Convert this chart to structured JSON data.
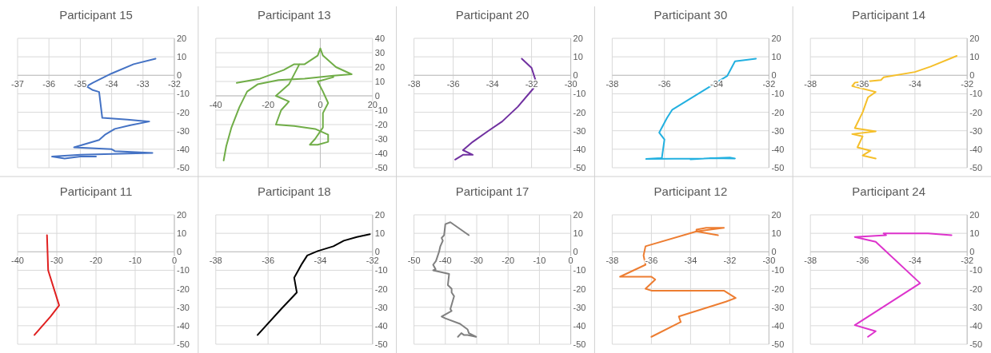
{
  "chart_data": [
    {
      "type": "line",
      "title": "Participant 15",
      "xlim": [
        -37,
        -32
      ],
      "xticks": [
        -37,
        -36,
        -35,
        -34,
        -33,
        -32
      ],
      "ylim": [
        -50,
        20
      ],
      "yticks": [
        -50,
        -40,
        -30,
        -20,
        -10,
        0,
        10,
        20
      ],
      "grid": true,
      "marker": "none",
      "line_style": "solid",
      "series": [
        {
          "color": "#4472c4",
          "x": [
            -32.6,
            -33.3,
            -34,
            -34.6,
            -34.8,
            -34.6,
            -34.4,
            -34.3,
            -33.5,
            -32.8,
            -33.4,
            -33.9,
            -34.2,
            -34.4,
            -35.2,
            -34,
            -33.9,
            -32.7,
            -35,
            -35.9,
            -35.5,
            -35,
            -34.5
          ],
          "values": [
            9,
            6,
            1,
            -4,
            -6,
            -8,
            -9,
            -23,
            -24,
            -25,
            -27,
            -29,
            -32,
            -35,
            -39,
            -40,
            -41,
            -42,
            -43,
            -44,
            -45,
            -44,
            -44
          ]
        }
      ]
    },
    {
      "type": "line",
      "title": "Participant 13",
      "xlim": [
        -40,
        20
      ],
      "xticks": [
        -40,
        -20,
        0,
        20
      ],
      "ylim": [
        -50,
        40
      ],
      "yticks": [
        -50,
        -40,
        -30,
        -20,
        -10,
        0,
        10,
        20,
        30,
        40
      ],
      "grid": true,
      "marker": "none",
      "line_style": "solid",
      "series": [
        {
          "color": "#70ad47",
          "x": [
            -37,
            -36,
            -34,
            -31,
            -28,
            -24,
            -16,
            -6,
            5,
            12,
            6,
            1,
            0,
            -1,
            -6,
            -10,
            -14,
            -23,
            -32,
            null,
            -8,
            -12,
            -17,
            -12,
            -15,
            -17,
            -10,
            -2,
            3,
            3,
            -1,
            -4,
            -2,
            1,
            1,
            3,
            1,
            -1,
            5
          ],
          "values": [
            -45,
            -35,
            -22,
            -8,
            3,
            8,
            11,
            12,
            14,
            15,
            20,
            28,
            33,
            28,
            22,
            22,
            18,
            12,
            9,
            null,
            22,
            8,
            0,
            -4,
            -10,
            -20,
            -21,
            -23,
            -27,
            -32,
            -34,
            -34,
            -30,
            -22,
            -12,
            -5,
            3,
            10,
            13
          ]
        }
      ]
    },
    {
      "type": "line",
      "title": "Participant 20",
      "xlim": [
        -38,
        -30
      ],
      "xticks": [
        -38,
        -36,
        -34,
        -32,
        -30
      ],
      "ylim": [
        -50,
        20
      ],
      "yticks": [
        -50,
        -40,
        -30,
        -20,
        -10,
        0,
        10,
        20
      ],
      "grid": true,
      "marker": "none",
      "line_style": "solid",
      "series": [
        {
          "color": "#7030a0",
          "x": [
            -32.5,
            -32,
            -31.8,
            -31.9,
            -32.7,
            -33.5,
            -34.2,
            -35,
            -35.5,
            -35,
            -35.5,
            -35.9
          ],
          "values": [
            9,
            4,
            -2.6,
            -7,
            -17,
            -25,
            -30,
            -36,
            -40.5,
            -43,
            -43,
            -45.6
          ]
        }
      ]
    },
    {
      "type": "line",
      "title": "Participant 30",
      "xlim": [
        -38,
        -32
      ],
      "xticks": [
        -38,
        -36,
        -34,
        -32
      ],
      "ylim": [
        -50,
        20
      ],
      "yticks": [
        -50,
        -40,
        -30,
        -20,
        -10,
        0,
        10,
        20
      ],
      "grid": true,
      "marker": "none",
      "line_style": "solid",
      "series": [
        {
          "color": "#22b0e0",
          "x": [
            -32.5,
            -33.3,
            -33.6,
            -35.7,
            -35.9,
            -36.2,
            -36,
            -36.1,
            -36.7,
            -34.5,
            -33.5,
            -33.3,
            -34.2,
            -35
          ],
          "values": [
            9,
            7.6,
            -0.4,
            -18.6,
            -23,
            -31,
            -34.7,
            -44.8,
            -45.3,
            -45,
            -44.5,
            -45,
            -44.8,
            -45.5
          ]
        }
      ]
    },
    {
      "type": "line",
      "title": "Participant 14",
      "xlim": [
        -38,
        -32
      ],
      "xticks": [
        -38,
        -36,
        -34,
        -32
      ],
      "ylim": [
        -50,
        20
      ],
      "yticks": [
        -50,
        -40,
        -30,
        -20,
        -10,
        0,
        10,
        20
      ],
      "grid": true,
      "marker": "none",
      "line_style": "solid",
      "series": [
        {
          "color": "#f5bf2a",
          "x": [
            -32.4,
            -33.4,
            -34,
            -35.2,
            -35.3,
            -36.3,
            -36.4,
            -35.5,
            -35.8,
            -36,
            -36.3,
            -35.5,
            -36.4,
            -36,
            -36.2,
            -35.7,
            -36,
            -35.5
          ],
          "values": [
            10.5,
            4.7,
            1.8,
            -1.1,
            -2.6,
            -4,
            -5.8,
            -9,
            -12,
            -20,
            -28.6,
            -30.3,
            -31.8,
            -33,
            -39,
            -40.8,
            -43.4,
            -45
          ]
        }
      ]
    },
    {
      "type": "line",
      "title": "Participant 11",
      "xlim": [
        -40,
        0
      ],
      "xticks": [
        -40,
        -30,
        -20,
        -10,
        0
      ],
      "ylim": [
        -50,
        20
      ],
      "yticks": [
        -50,
        -40,
        -30,
        -20,
        -10,
        0,
        10,
        20
      ],
      "grid": true,
      "marker": "none",
      "line_style": "solid",
      "series": [
        {
          "color": "#e02020",
          "x": [
            -32.5,
            -32.2,
            -29.4,
            -31.6,
            -35.7
          ],
          "values": [
            9,
            -10,
            -29,
            -35,
            -45
          ]
        }
      ]
    },
    {
      "type": "line",
      "title": "Participant 18",
      "xlim": [
        -38,
        -32
      ],
      "xticks": [
        -38,
        -36,
        -34,
        -32
      ],
      "ylim": [
        -50,
        20
      ],
      "yticks": [
        -50,
        -40,
        -30,
        -20,
        -10,
        0,
        10,
        20
      ],
      "grid": true,
      "marker": "none",
      "line_style": "solid",
      "series": [
        {
          "color": "#000000",
          "x": [
            -32.1,
            -32.6,
            -33.1,
            -33.5,
            -34.1,
            -34.5,
            -34.7,
            -35,
            -34.9,
            -35.5,
            -36.4
          ],
          "values": [
            9.5,
            8,
            6,
            3,
            0.4,
            -2,
            -6.4,
            -14,
            -22,
            -31,
            -45
          ]
        }
      ]
    },
    {
      "type": "line",
      "title": "Participant 17",
      "xlim": [
        -50,
        0
      ],
      "xticks": [
        -50,
        -40,
        -30,
        -20,
        -10,
        0
      ],
      "ylim": [
        -50,
        20
      ],
      "yticks": [
        -50,
        -40,
        -30,
        -20,
        -10,
        0,
        10,
        20
      ],
      "grid": true,
      "marker": "none",
      "line_style": "solid",
      "series": [
        {
          "color": "#808080",
          "x": [
            -32.5,
            -38.4,
            -40,
            -40.4,
            -41.2,
            -40.8,
            -41.6,
            -42,
            -42.4,
            -43,
            -43.9,
            -43.1,
            -43.9,
            -38.8,
            -39.2,
            -38,
            -38,
            -37.2,
            -38.4,
            -38,
            -41.2,
            -40,
            -35.3,
            -32.9,
            -32.5,
            -30.2,
            -32.9,
            -34.1,
            -34.9,
            -36
          ],
          "values": [
            9,
            16,
            15,
            9,
            7.5,
            6,
            3,
            0,
            -2,
            -5,
            -7,
            -9.5,
            -10,
            -12,
            -18,
            -20,
            -22,
            -24,
            -31,
            -32,
            -35,
            -36,
            -39,
            -42,
            -44,
            -46,
            -45,
            -45,
            -44,
            -46
          ]
        }
      ]
    },
    {
      "type": "line",
      "title": "Participant 12",
      "xlim": [
        -38,
        -30
      ],
      "xticks": [
        -38,
        -36,
        -34,
        -32,
        -30
      ],
      "ylim": [
        -50,
        20
      ],
      "yticks": [
        -50,
        -40,
        -30,
        -20,
        -10,
        0,
        10,
        20
      ],
      "grid": true,
      "marker": "none",
      "line_style": "solid",
      "series": [
        {
          "color": "#ed7d31",
          "x": [
            -32.6,
            -33.7,
            -33.7,
            -33.2,
            -32.3,
            -33.7,
            -36.3,
            -36.4,
            -36.3,
            -37.6,
            -36,
            -35.8,
            -36.3,
            -36,
            -32.3,
            -31.7,
            -32.2,
            -34.6,
            -34.5,
            -36
          ],
          "values": [
            9,
            11,
            12,
            13,
            13,
            11,
            3,
            -2,
            -7,
            -13.5,
            -13.5,
            -15,
            -20,
            -21,
            -21,
            -25,
            -27,
            -35,
            -38,
            -46
          ]
        }
      ]
    },
    {
      "type": "line",
      "title": "Participant 24",
      "xlim": [
        -38,
        -32
      ],
      "xticks": [
        -38,
        -36,
        -34,
        -32
      ],
      "ylim": [
        -50,
        20
      ],
      "yticks": [
        -50,
        -40,
        -30,
        -20,
        -10,
        0,
        10,
        20
      ],
      "grid": true,
      "marker": "none",
      "line_style": "solid",
      "series": [
        {
          "color": "#dd33cc",
          "x": [
            -32.6,
            -33.5,
            -35.2,
            -35.1,
            -36.3,
            -35.5,
            -33.8,
            -36.3,
            -35.5,
            -35.8
          ],
          "values": [
            9,
            10,
            10,
            9,
            8,
            5.4,
            -17,
            -39.7,
            -43,
            -46
          ]
        }
      ]
    }
  ]
}
